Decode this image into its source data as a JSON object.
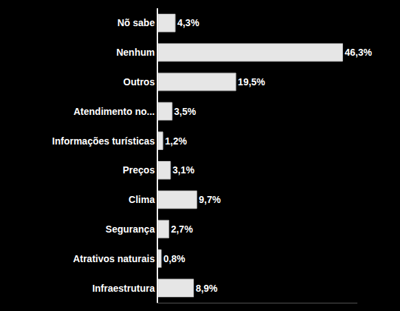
{
  "chart_data": {
    "type": "bar",
    "orientation": "horizontal",
    "categories": [
      "Nõ sabe",
      "Nenhum",
      "Outros",
      "Atendimento no...",
      "Informações turísticas",
      "Preços",
      "Clima",
      "Segurança",
      "Atrativos naturais",
      "Infraestrutura"
    ],
    "values": [
      4.3,
      46.3,
      19.5,
      3.5,
      1.2,
      3.1,
      9.7,
      2.7,
      0.8,
      8.9
    ],
    "value_labels": [
      "4,3%",
      "46,3%",
      "19,5%",
      "3,5%",
      "1,2%",
      "3,1%",
      "9,7%",
      "2,7%",
      "0,8%",
      "8,9%"
    ],
    "color": "#e6e6e6",
    "xlim": [
      0,
      50
    ],
    "data_labels": true,
    "tick_labels": "y",
    "grid": false
  }
}
